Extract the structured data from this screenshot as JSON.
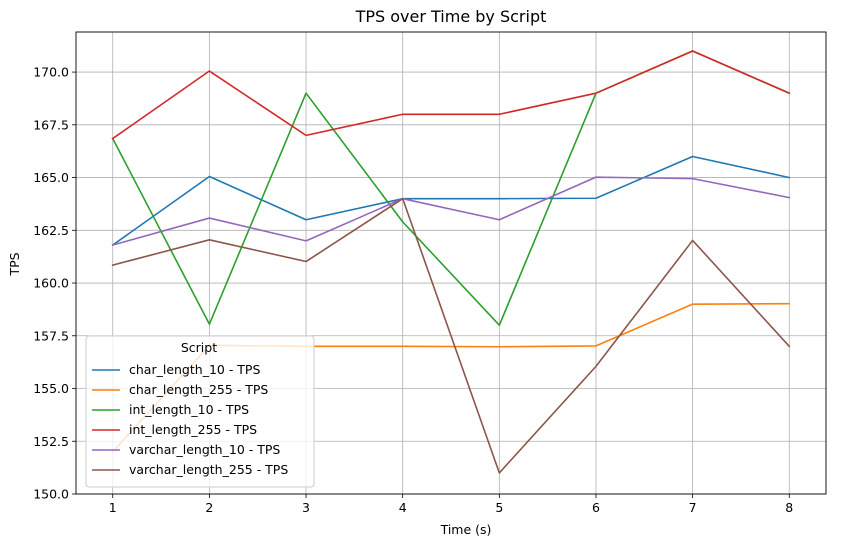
{
  "chart_data": {
    "type": "line",
    "title": "TPS over Time by Script",
    "xlabel": "Time (s)",
    "ylabel": "TPS",
    "x": [
      1,
      2,
      3,
      4,
      5,
      6,
      7,
      8
    ],
    "xlim": [
      0.62,
      8.38
    ],
    "ylim": [
      150.0,
      171.9
    ],
    "xticks": [
      1,
      2,
      3,
      4,
      5,
      6,
      7,
      8
    ],
    "yticks": [
      150.0,
      152.5,
      155.0,
      157.5,
      160.0,
      162.5,
      165.0,
      167.5,
      170.0
    ],
    "ytick_labels": [
      "150.0",
      "152.5",
      "155.0",
      "157.5",
      "160.0",
      "162.5",
      "165.0",
      "167.5",
      "170.0"
    ],
    "grid": true,
    "legend": {
      "title": "Script",
      "placement": "lower-left"
    },
    "series": [
      {
        "name": "char_length_10 - TPS",
        "color": "#1f77b4",
        "values": [
          161.8,
          165.05,
          163.0,
          164.0,
          164.0,
          164.02,
          166.0,
          165.0
        ]
      },
      {
        "name": "char_length_255 - TPS",
        "color": "#ff7f0e",
        "values": [
          152.0,
          157.05,
          157.0,
          157.0,
          156.98,
          157.02,
          159.0,
          159.02
        ]
      },
      {
        "name": "int_length_10 - TPS",
        "color": "#2ca02c",
        "values": [
          166.85,
          158.05,
          169.0,
          162.9,
          158.0,
          169.0,
          171.0,
          169.0
        ]
      },
      {
        "name": "int_length_255 - TPS",
        "color": "#d62728",
        "values": [
          166.85,
          170.05,
          167.0,
          168.0,
          168.0,
          169.0,
          171.0,
          169.0
        ]
      },
      {
        "name": "varchar_length_10 - TPS",
        "color": "#9467bd",
        "values": [
          161.8,
          163.08,
          162.0,
          164.0,
          163.0,
          165.02,
          164.95,
          164.05
        ]
      },
      {
        "name": "varchar_length_255 - TPS",
        "color": "#8c564b",
        "values": [
          160.85,
          162.05,
          161.02,
          164.0,
          151.0,
          156.05,
          162.02,
          157.0
        ]
      }
    ]
  }
}
